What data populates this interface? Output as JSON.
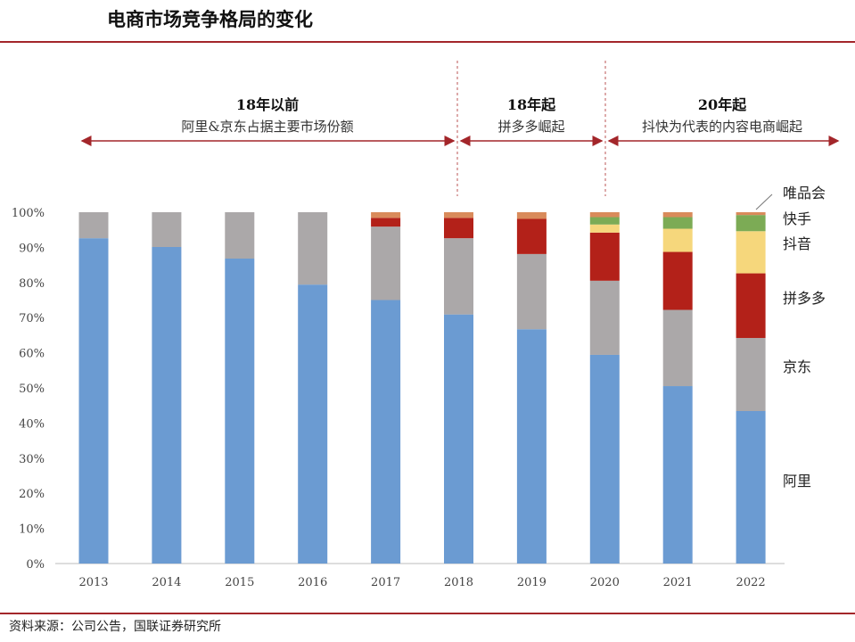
{
  "header": {
    "title": "电商市场竞争格局的变化"
  },
  "footer": {
    "source": "资料来源：公司公告，国联证券研究所"
  },
  "phases": [
    {
      "title": "18年以前",
      "subtitle": "阿里&京东占据主要市场份额"
    },
    {
      "title": "18年起",
      "subtitle": "拼多多崛起"
    },
    {
      "title": "20年起",
      "subtitle": "抖快为代表的内容电商崛起"
    }
  ],
  "chart_data": {
    "type": "bar",
    "stacked": true,
    "categories": [
      "2013",
      "2014",
      "2015",
      "2016",
      "2017",
      "2018",
      "2019",
      "2020",
      "2021",
      "2022"
    ],
    "ylim": [
      0,
      100
    ],
    "yticks": [
      "0%",
      "10%",
      "20%",
      "30%",
      "40%",
      "50%",
      "60%",
      "70%",
      "80%",
      "90%",
      "100%"
    ],
    "grid": false,
    "legend": "right, labels beside 2022 bar",
    "series": [
      {
        "name": "阿里",
        "color": "#6b9bd2",
        "values": [
          92.6,
          90.1,
          86.8,
          79.4,
          75.0,
          70.9,
          66.7,
          59.4,
          50.5,
          43.4
        ]
      },
      {
        "name": "京东",
        "color": "#aba8a9",
        "values": [
          7.4,
          9.9,
          13.2,
          20.6,
          20.9,
          21.7,
          21.4,
          21.1,
          21.7,
          20.8
        ]
      },
      {
        "name": "拼多多",
        "color": "#b32119",
        "values": [
          0,
          0,
          0,
          0,
          2.5,
          5.8,
          10.0,
          13.7,
          16.5,
          18.4
        ]
      },
      {
        "name": "抖音",
        "color": "#f6d77c",
        "values": [
          0,
          0,
          0,
          0,
          0,
          0,
          0,
          2.3,
          6.6,
          12.0
        ]
      },
      {
        "name": "快手",
        "color": "#7cab55",
        "values": [
          0,
          0,
          0,
          0,
          0,
          0,
          0,
          2.1,
          3.3,
          4.6
        ]
      },
      {
        "name": "唯品会",
        "color": "#d98b5b",
        "values": [
          0,
          0,
          0,
          0,
          1.6,
          1.6,
          1.9,
          1.4,
          1.4,
          0.8
        ]
      }
    ]
  }
}
